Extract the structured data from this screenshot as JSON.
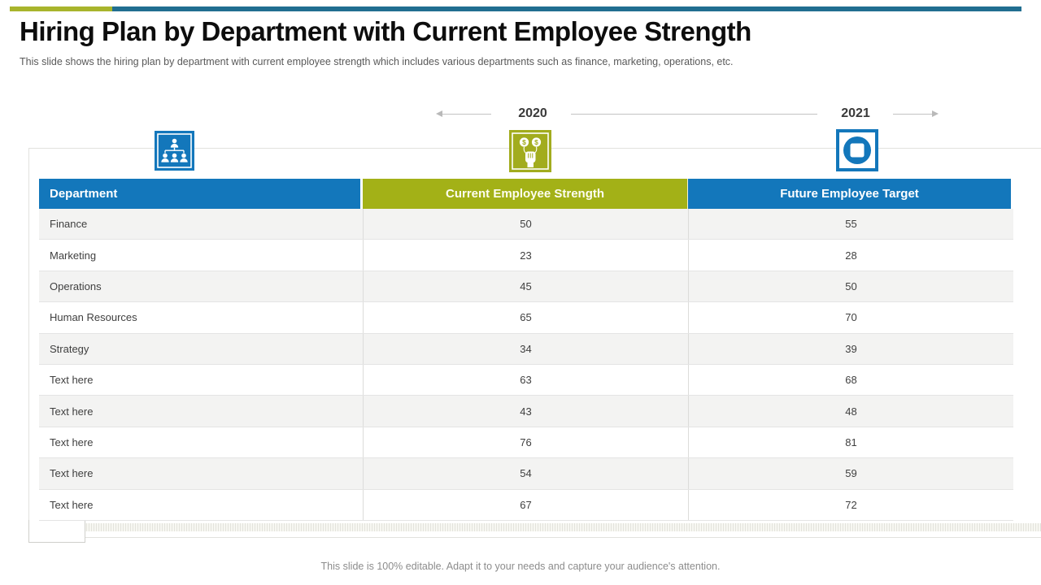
{
  "slide": {
    "title": "Hiring Plan by Department with Current Employee Strength",
    "subtitle": "This slide shows the hiring plan by department with current employee strength which includes various departments such as finance, marketing, operations, etc.",
    "footer": "This slide is 100% editable. Adapt it to your needs and capture your audience's attention."
  },
  "timeline": {
    "left_year": "2020",
    "right_year": "2021"
  },
  "icons": {
    "org_chart_icon": "org-chart-people-hierarchy",
    "money_hand_icon": "hand-holding-dollar-balloons",
    "target_shape_icon": "square-in-circle-badge"
  },
  "colors": {
    "accent_olive": "#a8b42c",
    "accent_teal": "#216e90",
    "header_blue": "#1377bb",
    "header_green": "#a3b117",
    "row_stripe": "#f3f3f2",
    "text_dark": "#3f3f3f"
  },
  "table": {
    "columns": [
      "Department",
      "Current Employee Strength",
      "Future Employee Target"
    ],
    "rows": [
      {
        "department": "Finance",
        "current": "50",
        "future": "55"
      },
      {
        "department": "Marketing",
        "current": "23",
        "future": "28"
      },
      {
        "department": "Operations",
        "current": "45",
        "future": "50"
      },
      {
        "department": "Human Resources",
        "current": "65",
        "future": "70"
      },
      {
        "department": "Strategy",
        "current": "34",
        "future": "39"
      },
      {
        "department": "Text here",
        "current": "63",
        "future": "68"
      },
      {
        "department": "Text here",
        "current": "43",
        "future": "48"
      },
      {
        "department": "Text here",
        "current": "76",
        "future": "81"
      },
      {
        "department": "Text here",
        "current": "54",
        "future": "59"
      },
      {
        "department": "Text here",
        "current": "67",
        "future": "72"
      }
    ]
  }
}
